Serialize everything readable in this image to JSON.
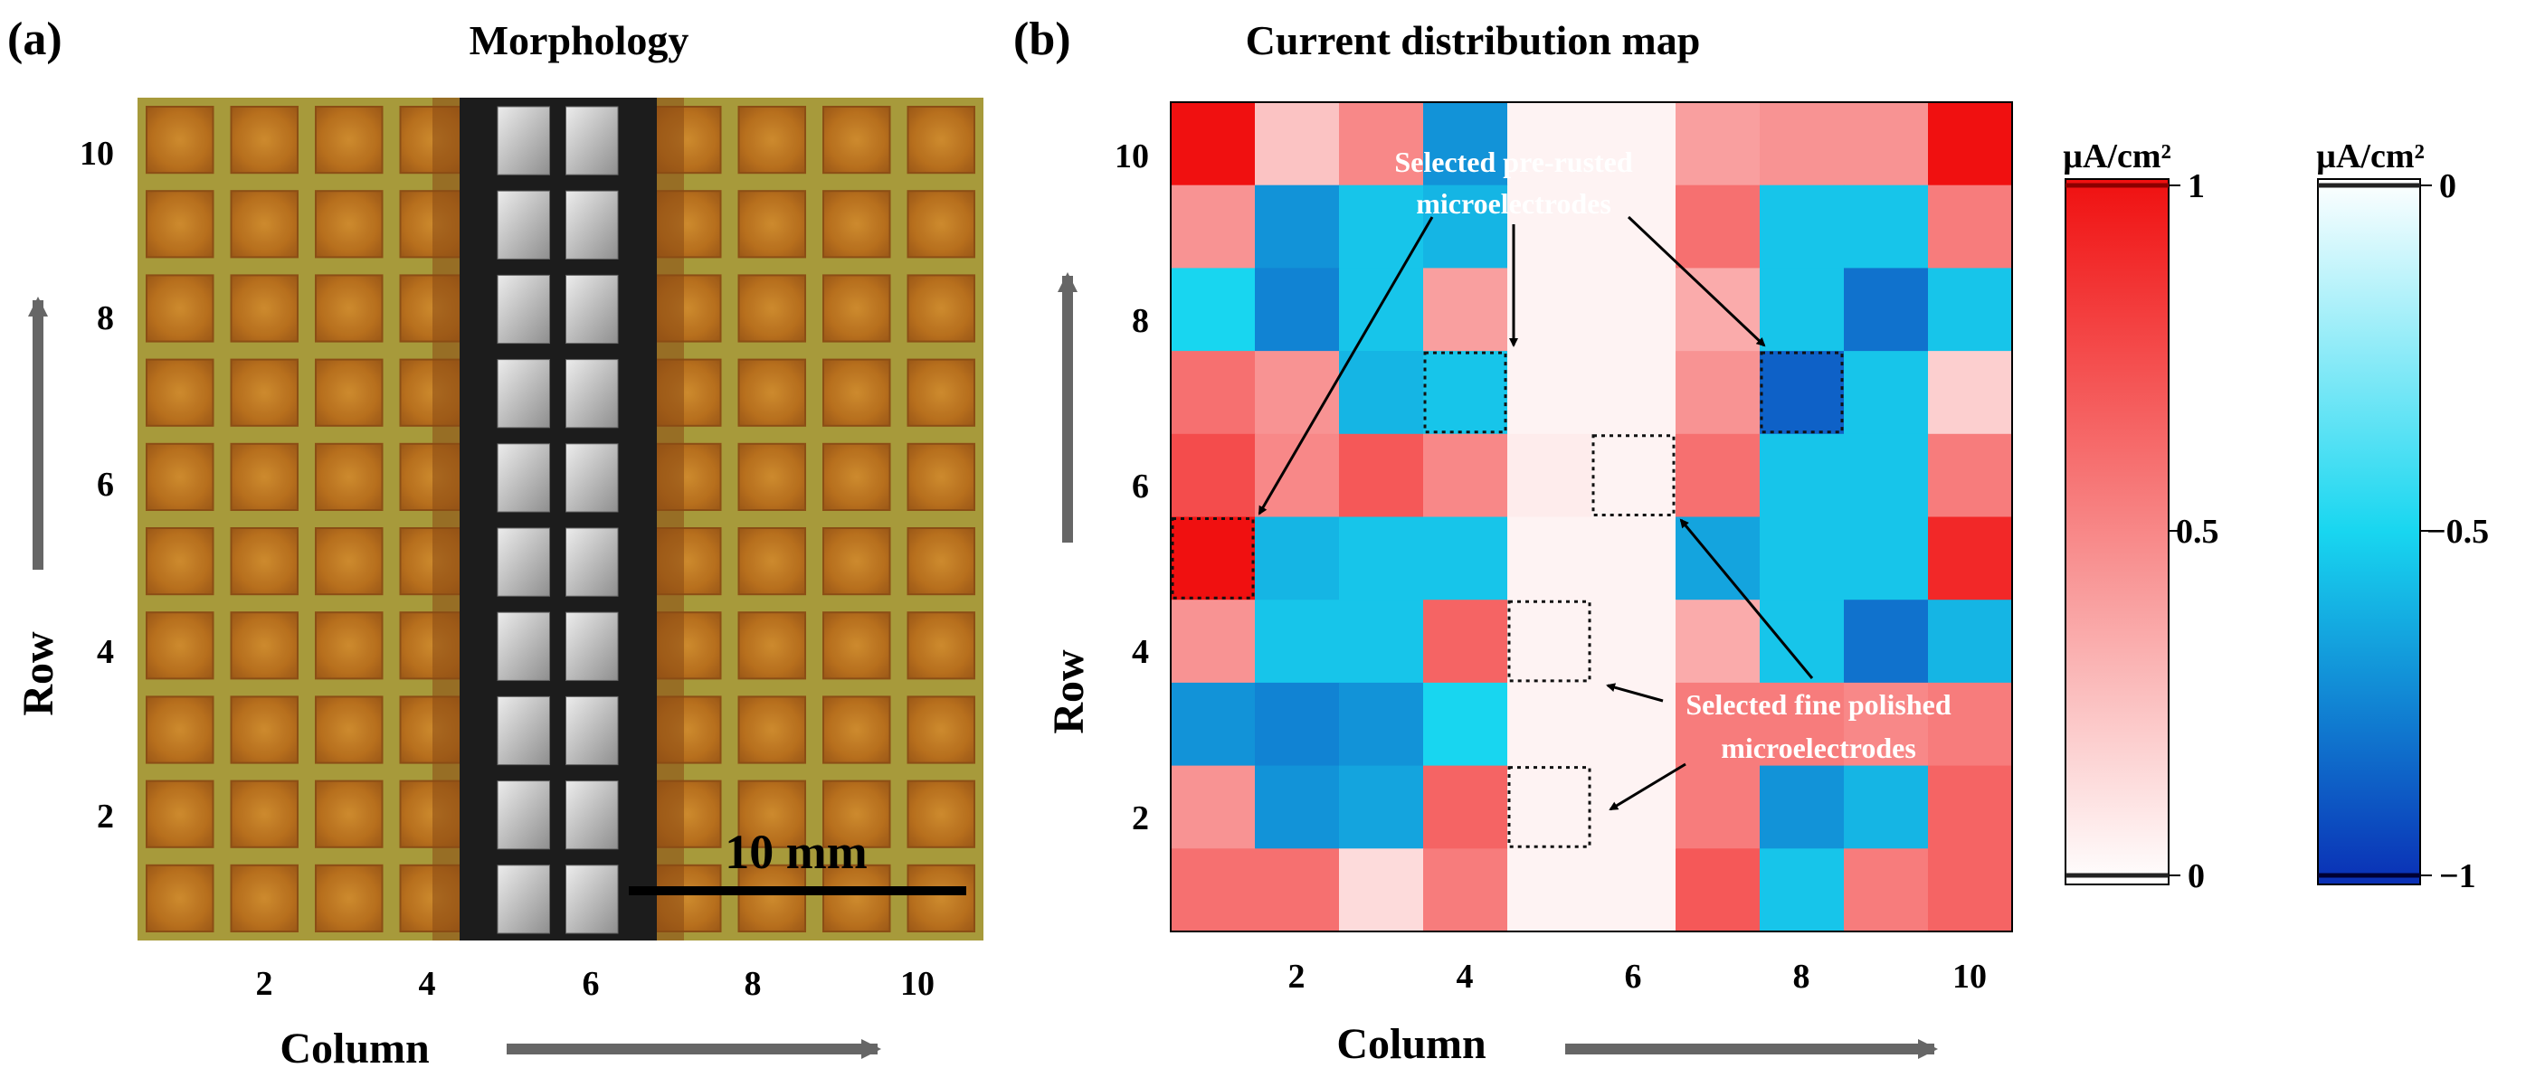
{
  "panel_a": {
    "label": "(a)",
    "title": "Morphology",
    "xlabel": "Column",
    "ylabel": "Row",
    "x_ticks": [
      "2",
      "4",
      "6",
      "8",
      "10"
    ],
    "y_ticks": [
      "10",
      "8",
      "6",
      "4",
      "2"
    ],
    "scale_bar": "10 mm",
    "colors": {
      "epoxy": "#a79a3b",
      "rust": "#c0761d",
      "rust_dark": "#8a4a14",
      "steel_light": "#e9e9e9",
      "steel_dark": "#a8a8a8",
      "gap": "#1c1c1c"
    }
  },
  "chart_data": {
    "type": "heatmap",
    "label": "(b)",
    "title": "Current distribution map",
    "xlabel": "Column",
    "ylabel": "Row",
    "x_ticks": [
      "2",
      "4",
      "6",
      "8",
      "10"
    ],
    "y_ticks": [
      "10",
      "8",
      "6",
      "4",
      "2"
    ],
    "units": "µA/cm²",
    "columns": [
      1,
      2,
      3,
      4,
      5,
      6,
      7,
      8,
      9,
      10
    ],
    "rows": [
      10,
      9,
      8,
      7,
      6,
      5,
      4,
      3,
      2,
      1
    ],
    "values": [
      [
        1.0,
        0.25,
        0.5,
        -0.7,
        0.05,
        0.05,
        0.4,
        0.45,
        0.45,
        1.0
      ],
      [
        0.45,
        -0.7,
        -0.55,
        -0.6,
        0.05,
        0.05,
        0.6,
        -0.55,
        -0.55,
        0.55
      ],
      [
        -0.5,
        -0.75,
        -0.55,
        0.4,
        0.05,
        0.05,
        0.35,
        -0.55,
        -0.8,
        -0.55
      ],
      [
        0.6,
        0.45,
        -0.6,
        -0.55,
        0.05,
        0.05,
        0.45,
        -0.85,
        -0.55,
        0.2
      ],
      [
        0.75,
        0.5,
        0.7,
        0.5,
        0.08,
        0.05,
        0.6,
        -0.55,
        -0.55,
        0.55
      ],
      [
        1.0,
        -0.6,
        -0.55,
        -0.55,
        0.05,
        0.05,
        -0.65,
        -0.55,
        -0.55,
        0.9
      ],
      [
        0.45,
        -0.55,
        -0.55,
        0.65,
        0.05,
        0.05,
        0.35,
        -0.55,
        -0.8,
        -0.6
      ],
      [
        -0.7,
        -0.75,
        -0.7,
        -0.5,
        0.05,
        0.05,
        0.55,
        0.55,
        0.5,
        0.55
      ],
      [
        0.45,
        -0.7,
        -0.65,
        0.65,
        0.05,
        0.05,
        0.55,
        -0.7,
        -0.6,
        0.65
      ],
      [
        0.6,
        0.6,
        0.15,
        0.55,
        0.05,
        0.05,
        0.7,
        -0.55,
        0.55,
        0.65
      ]
    ],
    "selected_pre_rusted": [
      [
        1,
        5
      ],
      [
        4,
        7
      ],
      [
        8,
        7
      ]
    ],
    "selected_fine_polished": [
      [
        6,
        6
      ],
      [
        5,
        4
      ],
      [
        5,
        2
      ]
    ],
    "annotations": {
      "pre_rusted": [
        "Selected pre-rusted",
        "microelectrodes"
      ],
      "fine_polished": [
        "Selected fine polished",
        "microelectrodes"
      ]
    },
    "colorbars": [
      {
        "units": "µA/cm²",
        "tick_labels": [
          "1",
          "0.5",
          "0"
        ],
        "tick_values": [
          1,
          0.5,
          0
        ],
        "range": [
          0,
          1
        ],
        "color_high": "#f01010",
        "color_low": "#ffffff",
        "edge_high": "#8b0000",
        "edge_low": "#222222"
      },
      {
        "units": "µA/cm²",
        "tick_labels": [
          "0",
          "−0.5",
          "−1"
        ],
        "tick_values": [
          0,
          -0.5,
          -1
        ],
        "range": [
          -1,
          0
        ],
        "color_high": "#ffffff",
        "color_mid": "#18d6f0",
        "color_low": "#0a2fb5",
        "edge_high": "#222222",
        "edge_low": "#000033"
      }
    ],
    "colors": {
      "positive_max": "#f01010",
      "negative_mid": "#18d6f0",
      "negative_max": "#0a2fb5",
      "zero": "#ffffff",
      "arrow": "#666666"
    }
  }
}
